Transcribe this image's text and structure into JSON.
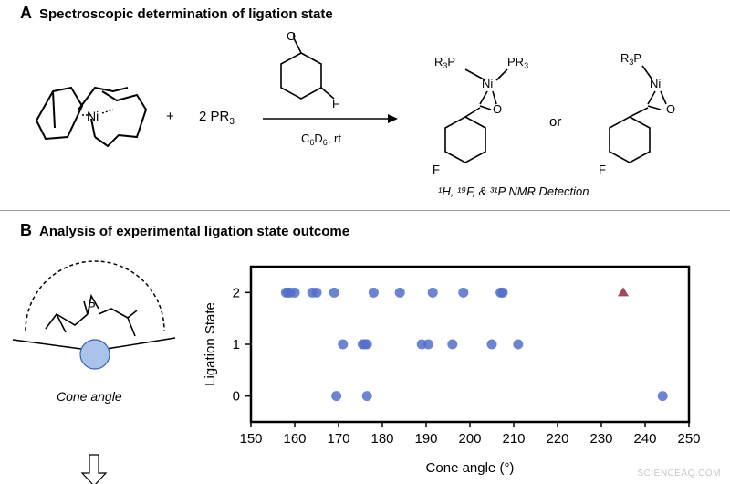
{
  "panel_a": {
    "letter": "A",
    "title": "Spectroscopic determination of ligation state",
    "reagent_1": "+",
    "reagent_2": "2 PR",
    "reagent_2_sub": "3",
    "conditions_solvent": "C",
    "conditions_sub1": "6",
    "conditions_d": "D",
    "conditions_sub2": "6",
    "conditions_temp": ", rt",
    "or_label": "or",
    "detection": "¹H, ¹⁹F, & ³¹P NMR Detection"
  },
  "panel_b": {
    "letter": "B",
    "title": "Analysis of experimental ligation state outcome",
    "cone_caption": "Cone angle"
  },
  "watermark": "SCIENCEAQ.COM",
  "colors": {
    "blue_point": "#5470c8",
    "triangle": "#a0485c",
    "frame": "#000000",
    "bulb": "#a9c4e8"
  },
  "chart_data": {
    "type": "scatter",
    "xlabel": "Cone angle (°)",
    "ylabel": "Ligation State",
    "xlim": [
      150,
      250
    ],
    "ylim": [
      -0.5,
      2.5
    ],
    "xticks": [
      150,
      160,
      170,
      180,
      190,
      200,
      210,
      220,
      230,
      240,
      250
    ],
    "yticks": [
      0,
      1,
      2
    ],
    "grid": false,
    "series": [
      {
        "marker": "circle",
        "color": "#5470c8",
        "points": [
          [
            158,
            2
          ],
          [
            158.5,
            2
          ],
          [
            159,
            2
          ],
          [
            160,
            2
          ],
          [
            164,
            2
          ],
          [
            165,
            2
          ],
          [
            169,
            2
          ],
          [
            178,
            2
          ],
          [
            184,
            2
          ],
          [
            191.5,
            2
          ],
          [
            198.5,
            2
          ],
          [
            207,
            2
          ],
          [
            207.5,
            2
          ],
          [
            171,
            1
          ],
          [
            175.5,
            1
          ],
          [
            176,
            1
          ],
          [
            176.5,
            1
          ],
          [
            189,
            1
          ],
          [
            190.5,
            1
          ],
          [
            196,
            1
          ],
          [
            205,
            1
          ],
          [
            211,
            1
          ],
          [
            169.5,
            0
          ],
          [
            176.5,
            0
          ],
          [
            244,
            0
          ]
        ]
      },
      {
        "marker": "triangle",
        "color": "#a0485c",
        "points": [
          [
            235,
            2
          ]
        ]
      }
    ]
  }
}
